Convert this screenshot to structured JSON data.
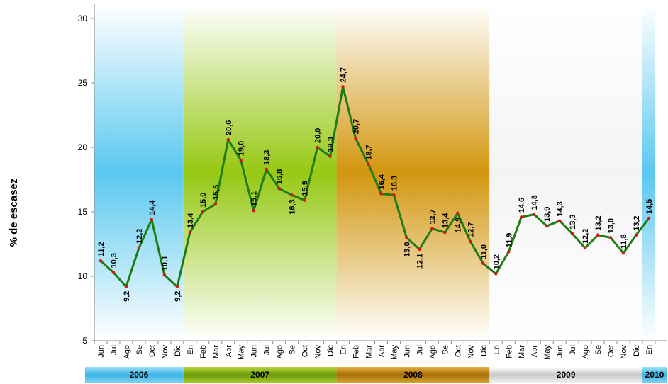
{
  "chart_data": {
    "type": "line",
    "title": "",
    "xlabel": "",
    "ylabel": "% de escasez",
    "ylim": [
      5,
      30
    ],
    "yticks": [
      5,
      10,
      15,
      20,
      25,
      30
    ],
    "x": [
      "Jun",
      "Jul",
      "Ago",
      "Se",
      "Oct",
      "Nov",
      "Dic",
      "En",
      "Feb",
      "Mar",
      "Abr",
      "May",
      "Jun",
      "Jul",
      "Ago",
      "Se",
      "Oct",
      "Nov",
      "Dic",
      "En",
      "Feb",
      "Mar",
      "Abr",
      "May",
      "Jun",
      "Jul",
      "Ago",
      "Se",
      "Oct",
      "Nov",
      "Dic",
      "En",
      "Feb",
      "Mar",
      "Abr",
      "May",
      "Jun",
      "Jul",
      "Ago",
      "Se",
      "Oct",
      "Nov",
      "Dic",
      "En"
    ],
    "series": [
      {
        "values": [
          11.2,
          10.3,
          9.2,
          12.2,
          14.4,
          10.1,
          9.2,
          13.4,
          15.0,
          15.6,
          20.6,
          19.0,
          15.1,
          18.3,
          16.8,
          16.3,
          15.9,
          20.0,
          19.3,
          24.7,
          20.7,
          18.7,
          16.4,
          16.3,
          13.0,
          12.1,
          13.7,
          13.4,
          14.9,
          12.7,
          11.0,
          10.2,
          11.9,
          14.6,
          14.8,
          13.9,
          14.3,
          13.3,
          12.2,
          13.2,
          13.0,
          11.8,
          13.2,
          14.5
        ],
        "labels": [
          "11,2",
          "10,3",
          "9,2",
          "12,2",
          "14,4",
          "10,1",
          "9,2",
          "13,4",
          "15,0",
          "15,6",
          "20,6",
          "19,0",
          "15,1",
          "18,3",
          "16,8",
          "16,3",
          "15,9",
          "20,0",
          "19,3",
          "24,7",
          "20,7",
          "18,7",
          "16,4",
          "16,3",
          "13,0",
          "12,1",
          "13,7",
          "13,4",
          "14,9",
          "12,7",
          "11,0",
          "10,2",
          "11,9",
          "14,6",
          "14,8",
          "13,9",
          "14,3",
          "13,3",
          "12,2",
          "13,2",
          "13,0",
          "11,8",
          "13,2",
          "14,5"
        ]
      }
    ],
    "years": [
      {
        "label": "2006",
        "start": 0,
        "end": 6
      },
      {
        "label": "2007",
        "start": 7,
        "end": 18
      },
      {
        "label": "2008",
        "start": 19,
        "end": 30
      },
      {
        "label": "2009",
        "start": 31,
        "end": 42
      },
      {
        "label": "2010",
        "start": 43,
        "end": 43
      }
    ],
    "grid": false,
    "legend": "none"
  },
  "colors": {
    "line": "#1e7d12",
    "marker": "#e01010",
    "year_2006": "#5ac8f0",
    "year_2007": "#8ab414",
    "year_2008": "#c88c14",
    "year_2009": "#f0f0f0",
    "year_2010": "#5ac8f0"
  }
}
